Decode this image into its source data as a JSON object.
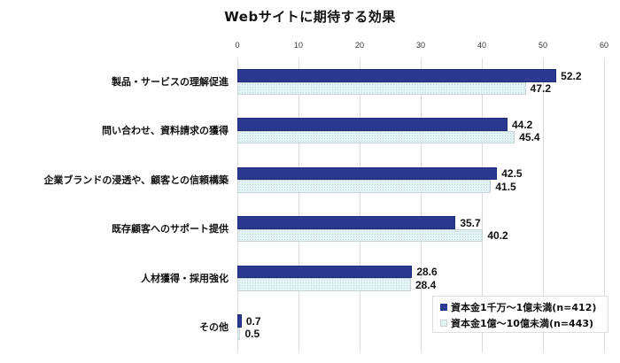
{
  "chart_data": {
    "type": "bar",
    "orientation": "horizontal",
    "title": "Webサイトに期待する効果",
    "xlabel": "",
    "ylabel": "",
    "xlim": [
      0,
      60
    ],
    "xticks": [
      0,
      10,
      20,
      30,
      40,
      50,
      60
    ],
    "grid": true,
    "legend_position": "bottom-right inside",
    "categories": [
      "製品・サービスの理解促進",
      "問い合わせ、資料請求の獲得",
      "企業ブランドの浸透や、顧客との信頼構築",
      "既存顧客へのサポート提供",
      "人材獲得・採用強化",
      "その他"
    ],
    "series": [
      {
        "name": "資本金1千万～1億未満(n=412)",
        "color": "#2b3990",
        "values": [
          52.2,
          44.2,
          42.5,
          35.7,
          28.6,
          0.7
        ]
      },
      {
        "name": "資本金1億～10億未満(n=443)",
        "color": "#e4f3f3",
        "values": [
          47.2,
          45.4,
          41.5,
          40.2,
          28.4,
          0.5
        ]
      }
    ]
  },
  "title": "Webサイトに期待する効果",
  "ticks": [
    "0",
    "10",
    "20",
    "30",
    "40",
    "50",
    "60"
  ],
  "legend": {
    "items": [
      {
        "label": "資本金1千万～1億未満(n=412)",
        "icon": "navy-square-swatch"
      },
      {
        "label": "資本金1億～10億未満(n=443)",
        "icon": "light-dotted-square-swatch"
      }
    ]
  }
}
